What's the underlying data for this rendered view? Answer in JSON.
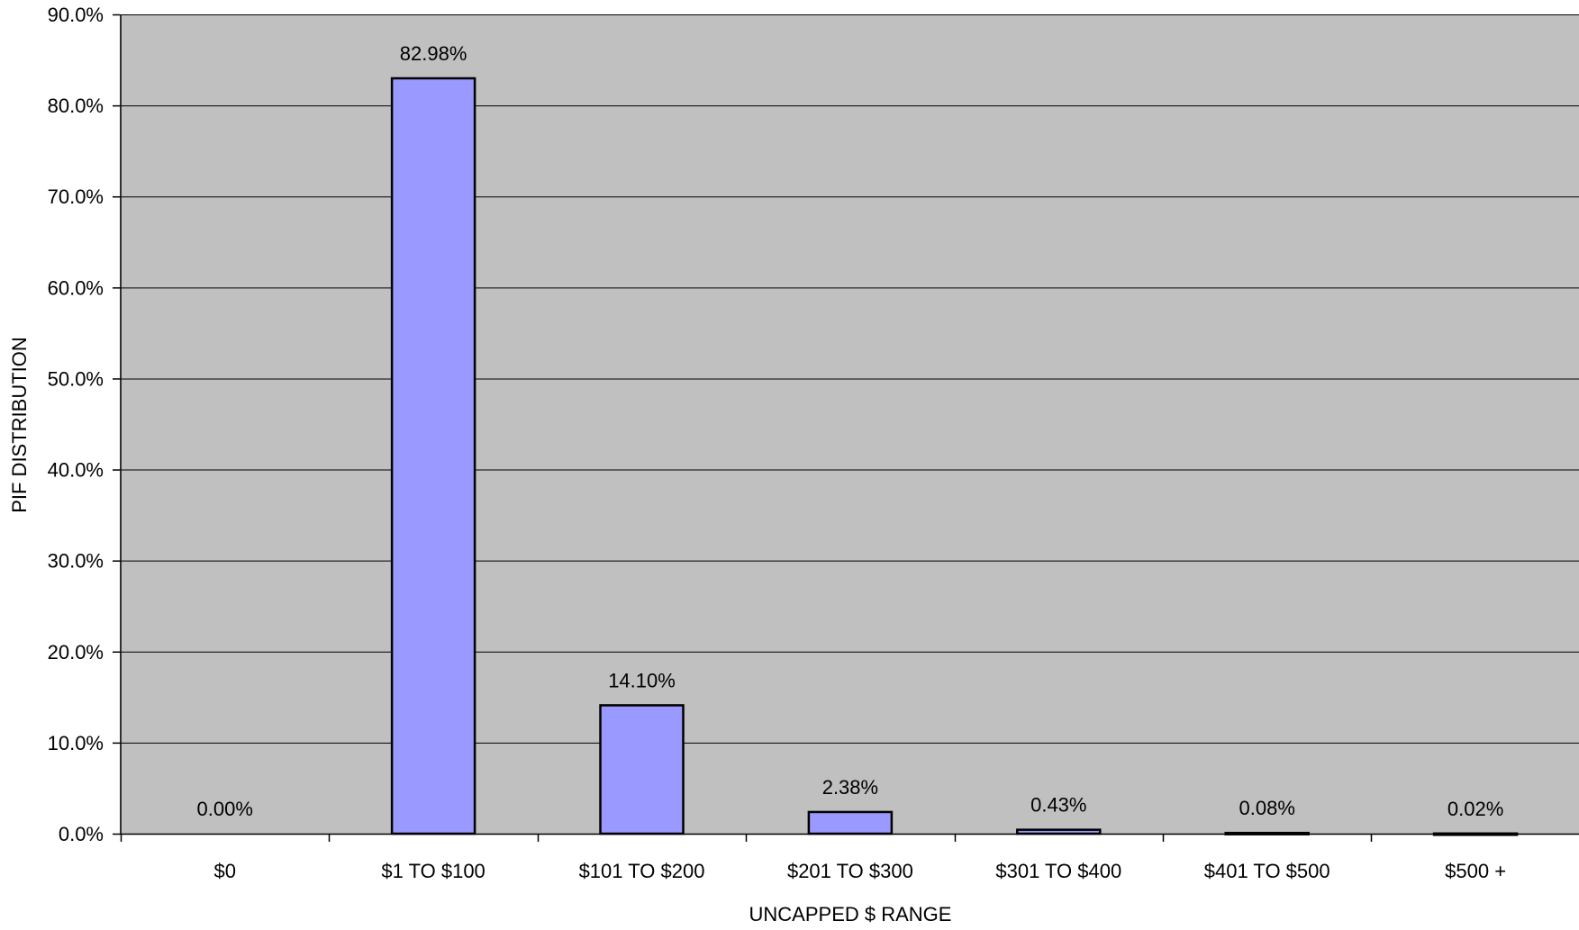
{
  "chart_data": {
    "type": "bar",
    "title": "",
    "xlabel": "UNCAPPED $ RANGE",
    "ylabel": "PIF DISTRIBUTION",
    "categories": [
      "$0",
      "$1 TO $100",
      "$101 TO $200",
      "$201 TO $300",
      "$301 TO $400",
      "$401 TO $500",
      "$500 +"
    ],
    "values": [
      0.0,
      82.98,
      14.1,
      2.38,
      0.43,
      0.08,
      0.02
    ],
    "data_labels": [
      "0.00%",
      "82.98%",
      "14.10%",
      "2.38%",
      "0.43%",
      "0.08%",
      "0.02%"
    ],
    "y_ticks": [
      0,
      10,
      20,
      30,
      40,
      50,
      60,
      70,
      80,
      90
    ],
    "y_tick_labels": [
      "0.0%",
      "10.0%",
      "20.0%",
      "30.0%",
      "40.0%",
      "50.0%",
      "60.0%",
      "70.0%",
      "80.0%",
      "90.0%"
    ],
    "ylim": [
      0,
      90
    ],
    "grid": true,
    "legend": "none",
    "colors": {
      "plot_background": "#c0c0c0",
      "bar_fill": "#9999ff",
      "bar_stroke": "#000000",
      "gridline": "#000000"
    }
  }
}
